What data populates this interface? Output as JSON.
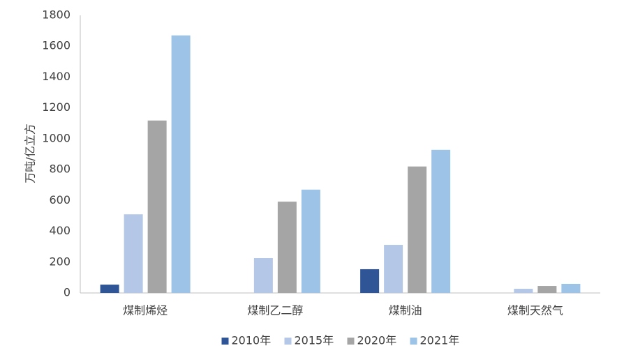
{
  "chart_data": {
    "type": "bar",
    "y_label": "万吨/亿立方",
    "categories": [
      "煤制烯烃",
      "煤制乙二醇",
      "煤制油",
      "煤制天然气"
    ],
    "series": [
      {
        "name": "2010年",
        "color": "#2f5597",
        "values": [
          54,
          null,
          154,
          null
        ]
      },
      {
        "name": "2015年",
        "color": "#b4c7e7",
        "values": [
          510,
          226,
          312,
          27
        ]
      },
      {
        "name": "2020年",
        "color": "#a5a5a5",
        "values": [
          1118,
          592,
          820,
          45
        ]
      },
      {
        "name": "2021年",
        "color": "#9dc3e6",
        "values": [
          1670,
          670,
          928,
          59
        ]
      }
    ],
    "ylim": [
      0,
      1800
    ],
    "yticks": [
      0,
      200,
      400,
      600,
      800,
      1000,
      1200,
      1400,
      1600,
      1800
    ],
    "legend": "bottom",
    "grid": false
  }
}
